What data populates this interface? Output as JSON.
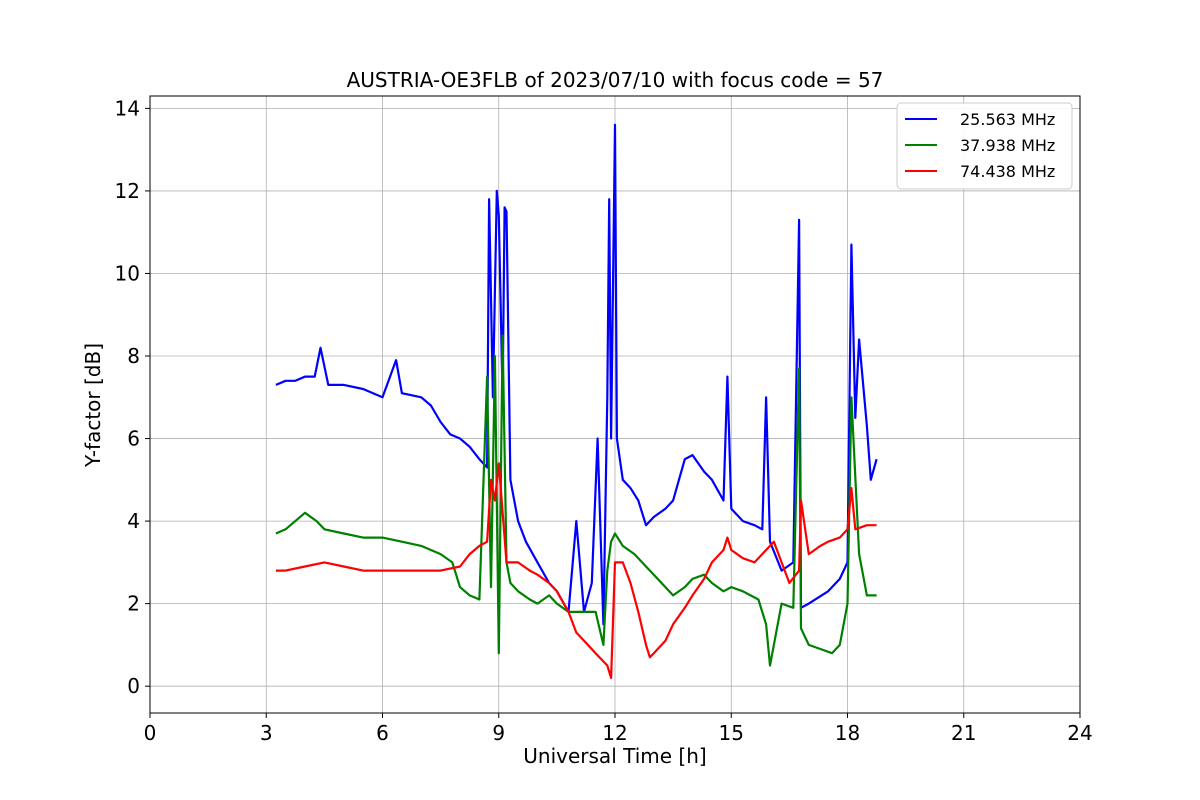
{
  "chart_data": {
    "type": "line",
    "title": "AUSTRIA-OE3FLB of 2023/07/10 with focus code = 57",
    "xlabel": "Universal Time [h]",
    "ylabel": "Y-factor [dB]",
    "xlim": [
      0,
      24
    ],
    "ylim": [
      -0.65,
      14.3
    ],
    "xticks": [
      0,
      3,
      6,
      9,
      12,
      15,
      18,
      21,
      24
    ],
    "yticks": [
      0,
      2,
      4,
      6,
      8,
      10,
      12,
      14
    ],
    "grid": true,
    "legend_position": "top-right",
    "series": [
      {
        "name": "25.563 MHz",
        "color": "#0000ff",
        "x": [
          3.25,
          3.5,
          3.75,
          4.0,
          4.25,
          4.4,
          4.6,
          5.0,
          5.5,
          6.0,
          6.35,
          6.5,
          7.0,
          7.25,
          7.5,
          7.75,
          8.0,
          8.25,
          8.5,
          8.7,
          8.75,
          8.85,
          8.95,
          9.0,
          9.1,
          9.15,
          9.2,
          9.3,
          9.5,
          9.7,
          10.0,
          10.3,
          10.5,
          10.8,
          11.0,
          11.2,
          11.4,
          11.55,
          11.7,
          11.8,
          11.85,
          11.9,
          12.0,
          12.05,
          12.2,
          12.4,
          12.6,
          12.8,
          13.0,
          13.3,
          13.5,
          13.8,
          14.0,
          14.3,
          14.5,
          14.8,
          14.9,
          15.0,
          15.3,
          15.6,
          15.8,
          15.9,
          16.0,
          16.3,
          16.6,
          16.75,
          16.8,
          17.0,
          17.5,
          17.8,
          18.0,
          18.1,
          18.2,
          18.3,
          18.5,
          18.6,
          18.75
        ],
        "y": [
          7.3,
          7.4,
          7.4,
          7.5,
          7.5,
          8.2,
          7.3,
          7.3,
          7.2,
          7.0,
          7.9,
          7.1,
          7.0,
          6.8,
          6.4,
          6.1,
          6.0,
          5.8,
          5.5,
          5.3,
          11.8,
          7.0,
          12.0,
          11.4,
          7.0,
          11.6,
          11.5,
          5.0,
          4.0,
          3.5,
          3.0,
          2.5,
          2.3,
          1.8,
          4.0,
          1.8,
          2.5,
          6.0,
          1.5,
          7.0,
          11.8,
          6.0,
          13.6,
          6.0,
          5.0,
          4.8,
          4.5,
          3.9,
          4.1,
          4.3,
          4.5,
          5.5,
          5.6,
          5.2,
          5.0,
          4.5,
          7.5,
          4.3,
          4.0,
          3.9,
          3.8,
          7.0,
          3.5,
          2.8,
          3.0,
          11.3,
          1.9,
          2.0,
          2.3,
          2.6,
          3.0,
          10.7,
          6.5,
          8.4,
          6.3,
          5.0,
          5.5
        ]
      },
      {
        "name": "37.938 MHz",
        "color": "#008000",
        "x": [
          3.25,
          3.5,
          4.0,
          4.3,
          4.5,
          5.0,
          5.5,
          6.0,
          6.5,
          7.0,
          7.5,
          7.8,
          8.0,
          8.25,
          8.5,
          8.7,
          8.8,
          8.9,
          9.0,
          9.1,
          9.2,
          9.3,
          9.5,
          9.8,
          10.0,
          10.3,
          10.5,
          10.8,
          11.0,
          11.3,
          11.5,
          11.7,
          11.8,
          11.9,
          12.0,
          12.2,
          12.5,
          12.8,
          13.0,
          13.3,
          13.5,
          13.8,
          14.0,
          14.3,
          14.5,
          14.8,
          15.0,
          15.3,
          15.5,
          15.7,
          15.9,
          16.0,
          16.3,
          16.6,
          16.75,
          16.8,
          17.0,
          17.3,
          17.6,
          17.8,
          18.0,
          18.1,
          18.3,
          18.5,
          18.75
        ],
        "y": [
          3.7,
          3.8,
          4.2,
          4.0,
          3.8,
          3.7,
          3.6,
          3.6,
          3.5,
          3.4,
          3.2,
          3.0,
          2.4,
          2.2,
          2.1,
          7.5,
          2.4,
          8.0,
          0.8,
          8.5,
          3.0,
          2.5,
          2.3,
          2.1,
          2.0,
          2.2,
          2.0,
          1.8,
          1.8,
          1.8,
          1.8,
          1.0,
          2.8,
          3.5,
          3.7,
          3.4,
          3.2,
          2.9,
          2.7,
          2.4,
          2.2,
          2.4,
          2.6,
          2.7,
          2.5,
          2.3,
          2.4,
          2.3,
          2.2,
          2.1,
          1.5,
          0.5,
          2.0,
          1.9,
          7.7,
          1.4,
          1.0,
          0.9,
          0.8,
          1.0,
          2.0,
          7.0,
          3.2,
          2.2,
          2.2
        ]
      },
      {
        "name": "74.438 MHz",
        "color": "#ff0000",
        "x": [
          3.25,
          3.5,
          4.0,
          4.5,
          5.0,
          5.5,
          6.0,
          6.5,
          7.0,
          7.5,
          8.0,
          8.25,
          8.5,
          8.7,
          8.8,
          8.9,
          9.0,
          9.2,
          9.5,
          9.8,
          10.0,
          10.3,
          10.5,
          10.8,
          11.0,
          11.3,
          11.5,
          11.8,
          11.9,
          12.0,
          12.2,
          12.4,
          12.6,
          12.8,
          12.9,
          13.0,
          13.3,
          13.5,
          13.8,
          14.0,
          14.3,
          14.5,
          14.8,
          14.9,
          15.0,
          15.3,
          15.6,
          15.9,
          16.1,
          16.3,
          16.5,
          16.75,
          16.8,
          17.0,
          17.3,
          17.5,
          17.8,
          18.0,
          18.1,
          18.2,
          18.5,
          18.75
        ],
        "y": [
          2.8,
          2.8,
          2.9,
          3.0,
          2.9,
          2.8,
          2.8,
          2.8,
          2.8,
          2.8,
          2.9,
          3.2,
          3.4,
          3.5,
          5.0,
          4.5,
          5.4,
          3.0,
          3.0,
          2.8,
          2.7,
          2.5,
          2.3,
          1.8,
          1.3,
          1.0,
          0.8,
          0.5,
          0.2,
          3.0,
          3.0,
          2.5,
          1.8,
          1.0,
          0.7,
          0.8,
          1.1,
          1.5,
          1.9,
          2.2,
          2.6,
          3.0,
          3.3,
          3.6,
          3.3,
          3.1,
          3.0,
          3.3,
          3.5,
          3.0,
          2.5,
          2.8,
          4.5,
          3.2,
          3.4,
          3.5,
          3.6,
          3.8,
          4.8,
          3.8,
          3.9,
          3.9
        ]
      }
    ]
  }
}
